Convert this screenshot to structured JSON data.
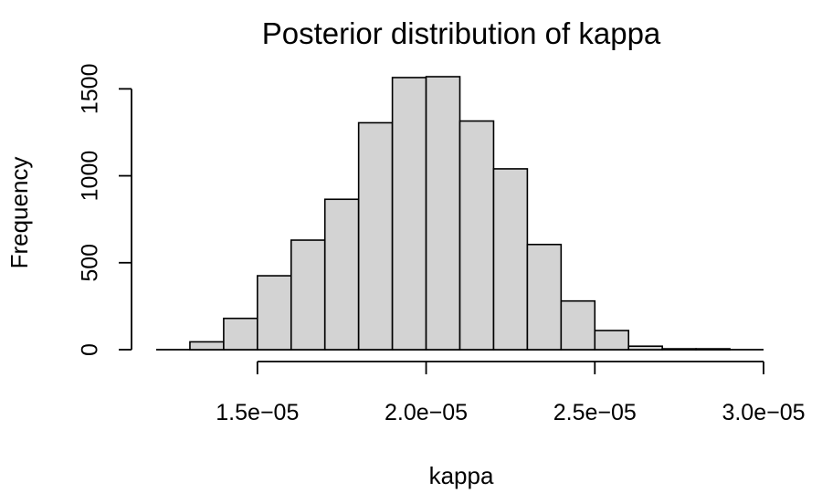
{
  "chart_data": {
    "type": "bar",
    "subtype": "histogram",
    "title": "Posterior distribution of kappa",
    "xlabel": "kappa",
    "ylabel": "Frequency",
    "bin_width": 1e-06,
    "bin_edges": [
      1.2e-05,
      1.3e-05,
      1.4e-05,
      1.5e-05,
      1.6e-05,
      1.7e-05,
      1.8e-05,
      1.9e-05,
      2e-05,
      2.1e-05,
      2.2e-05,
      2.3e-05,
      2.4e-05,
      2.5e-05,
      2.6e-05,
      2.7e-05,
      2.8e-05,
      2.9e-05,
      3e-05
    ],
    "values": [
      0,
      45,
      180,
      425,
      630,
      865,
      1305,
      1565,
      1570,
      1315,
      1040,
      605,
      280,
      110,
      20,
      5,
      5,
      0
    ],
    "x_ticks": [
      1.5e-05,
      2e-05,
      2.5e-05,
      3e-05
    ],
    "x_tick_labels": [
      "1.5e−05",
      "2.0e−05",
      "2.5e−05",
      "3.0e−05"
    ],
    "y_ticks": [
      0,
      500,
      1000,
      1500
    ],
    "y_tick_labels": [
      "0",
      "500",
      "1000",
      "1500"
    ],
    "xlim": [
      1.2e-05,
      3e-05
    ],
    "ylim": [
      0,
      1570
    ],
    "grid": false,
    "bar_color": "#d3d3d3",
    "edge_color": "#000000"
  }
}
